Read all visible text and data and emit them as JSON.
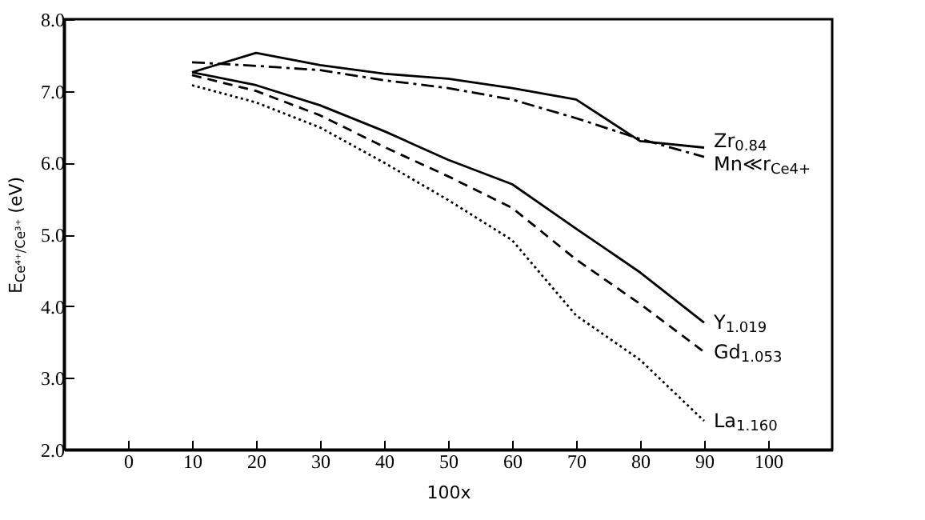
{
  "chart_data": {
    "type": "line",
    "xlabel": "100x",
    "ylabel": "E$_{Ce⁴⁺/Ce³⁺}$ (eV)",
    "x": [
      10,
      20,
      30,
      40,
      50,
      60,
      70,
      80,
      90
    ],
    "series": [
      {
        "name": "Zr$_{0.84}$",
        "color": "#000000",
        "line_style": "solid",
        "values": [
          7.26,
          7.53,
          7.36,
          7.24,
          7.17,
          7.04,
          6.88,
          6.3,
          6.21
        ]
      },
      {
        "name": "Mn≪r$_{Ce4+}$",
        "color": "#000000",
        "line_style": "dashdot",
        "values": [
          7.4,
          7.35,
          7.29,
          7.15,
          7.04,
          6.88,
          6.62,
          6.33,
          6.08
        ]
      },
      {
        "name": "Y$_{1.019}$",
        "color": "#000000",
        "line_style": "solid",
        "values": [
          7.26,
          7.08,
          6.8,
          6.44,
          6.04,
          5.7,
          5.08,
          4.47,
          3.77
        ]
      },
      {
        "name": "Gd$_{1.053}$",
        "color": "#000000",
        "line_style": "dashed",
        "values": [
          7.22,
          7.0,
          6.66,
          6.22,
          5.81,
          5.37,
          4.65,
          4.03,
          3.36
        ]
      },
      {
        "name": "La$_{1.160}$",
        "color": "#000000",
        "line_style": "dotted",
        "values": [
          7.08,
          6.84,
          6.49,
          6.0,
          5.48,
          4.92,
          3.87,
          3.25,
          2.4
        ]
      }
    ],
    "xlim": [
      -10,
      110
    ],
    "xticks": [
      0,
      10,
      20,
      30,
      40,
      50,
      60,
      70,
      80,
      90,
      100
    ],
    "ylim": [
      2,
      8
    ],
    "yticks": [
      {
        "value": 2,
        "label": "2.0"
      },
      {
        "value": 3,
        "label": "3.0"
      },
      {
        "value": 4,
        "label": "4.0"
      },
      {
        "value": 5,
        "label": "5.0"
      },
      {
        "value": 6,
        "label": "6.0"
      },
      {
        "value": 7,
        "label": "7.0"
      },
      {
        "value": 8,
        "label": "8.0"
      }
    ],
    "grid": false,
    "legend": false,
    "marker": "none"
  }
}
